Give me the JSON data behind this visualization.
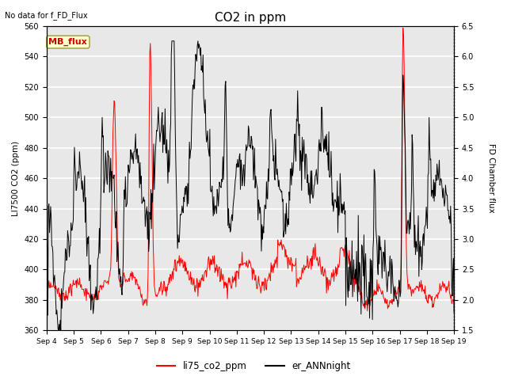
{
  "title": "CO2 in ppm",
  "top_left_text": "No data for f_FD_Flux",
  "left_ylabel": "LI7500 CO2 (ppm)",
  "right_ylabel": "FD Chamber flux",
  "left_ylim": [
    360,
    560
  ],
  "right_ylim": [
    1.5,
    6.5
  ],
  "left_yticks": [
    360,
    380,
    400,
    420,
    440,
    460,
    480,
    500,
    520,
    540,
    560
  ],
  "right_yticks": [
    1.5,
    2.0,
    2.5,
    3.0,
    3.5,
    4.0,
    4.5,
    5.0,
    5.5,
    6.0,
    6.5
  ],
  "xticklabels": [
    "Sep 4",
    "Sep 5",
    "Sep 6",
    "Sep 7",
    "Sep 8",
    "Sep 9",
    "Sep 10",
    "Sep 11",
    "Sep 12",
    "Sep 13",
    "Sep 14",
    "Sep 15",
    "Sep 16",
    "Sep 17",
    "Sep 18",
    "Sep 19"
  ],
  "legend_labels": [
    "li75_co2_ppm",
    "er_ANNnight"
  ],
  "legend_colors": [
    "red",
    "black"
  ],
  "mb_flux_box_color": "#ffffcc",
  "mb_flux_text_color": "#cc0000",
  "bg_color": "#e8e8e8",
  "grid_color": "white",
  "figsize": [
    6.4,
    4.8
  ],
  "dpi": 100
}
